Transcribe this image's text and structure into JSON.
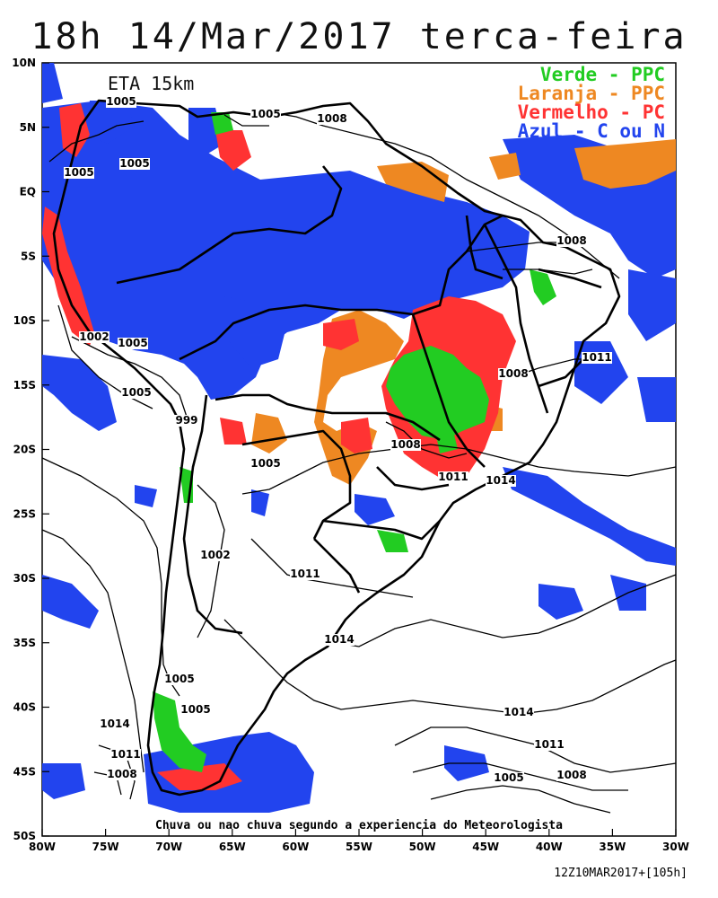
{
  "title": "18h 14/Mar/2017 terca-feira",
  "model": "ETA 15km",
  "legend": [
    {
      "text": "Verde - PPC",
      "color": "#22cc22"
    },
    {
      "text": "Laranja - PPC",
      "color": "#ee8822"
    },
    {
      "text": "Vermelho - PC",
      "color": "#ff3333"
    },
    {
      "text": "Azul - C ou N",
      "color": "#2244ee"
    }
  ],
  "caption": "Chuva ou nao chuva segundo a experiencia do Meteorologista",
  "timestamp": "12Z10MAR2017+[105h]",
  "lat_ticks": [
    "10N",
    "5N",
    "EQ",
    "5S",
    "10S",
    "15S",
    "20S",
    "25S",
    "30S",
    "35S",
    "40S",
    "45S",
    "50S"
  ],
  "lon_ticks": [
    "80W",
    "75W",
    "70W",
    "65W",
    "60W",
    "55W",
    "50W",
    "45W",
    "40W",
    "35W",
    "30W"
  ],
  "isobar_labels": [
    "1005",
    "1008",
    "1005",
    "1005",
    "1008",
    "1005",
    "1002",
    "1005",
    "1011",
    "1005",
    "1008",
    "999",
    "1005",
    "1011",
    "1014",
    "1008",
    "1002",
    "1011",
    "1014",
    "1005",
    "1005",
    "1014",
    "1014",
    "1011",
    "1011",
    "1008",
    "1008",
    "1005"
  ]
}
